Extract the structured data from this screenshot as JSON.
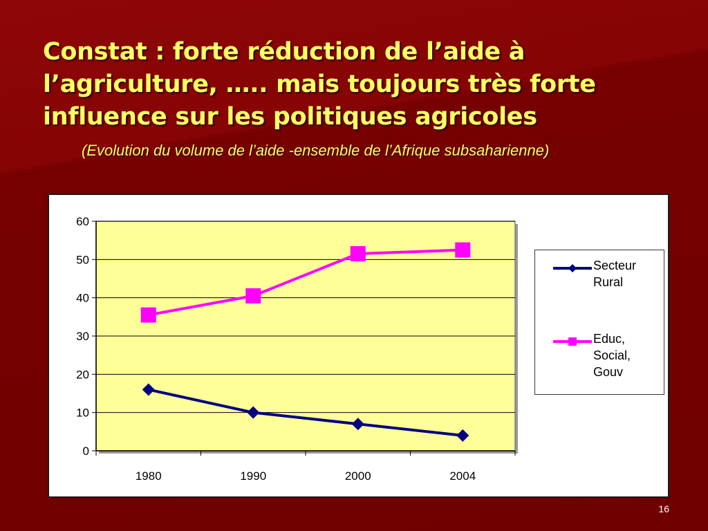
{
  "slide": {
    "title": "Constat : forte réduction de l’aide à l’agriculture, ….. mais toujours très forte influence sur les politiques agricoles",
    "subtitle": "(Evolution du volume de l’aide -ensemble de l’Afrique subsaharienne)",
    "page_number": "16"
  },
  "colors": {
    "background": "#7a0000",
    "title": "#ffff66",
    "plot_area": "#ffff99",
    "series_rural": "#000080",
    "series_educ": "#ff00ff"
  },
  "chart_data": {
    "type": "line",
    "categories": [
      "1980",
      "1990",
      "2000",
      "2004"
    ],
    "series": [
      {
        "name": "Secteur Rural",
        "values": [
          16,
          10,
          7,
          4
        ],
        "color": "#000080",
        "marker": "diamond"
      },
      {
        "name": "Educ, Social, Gouv",
        "values": [
          35.5,
          40.5,
          51.5,
          52.5
        ],
        "color": "#ff00ff",
        "marker": "square"
      }
    ],
    "ylim": [
      0,
      60
    ],
    "yticks": [
      0,
      10,
      20,
      30,
      40,
      50,
      60
    ],
    "grid": true,
    "legend": "right"
  }
}
